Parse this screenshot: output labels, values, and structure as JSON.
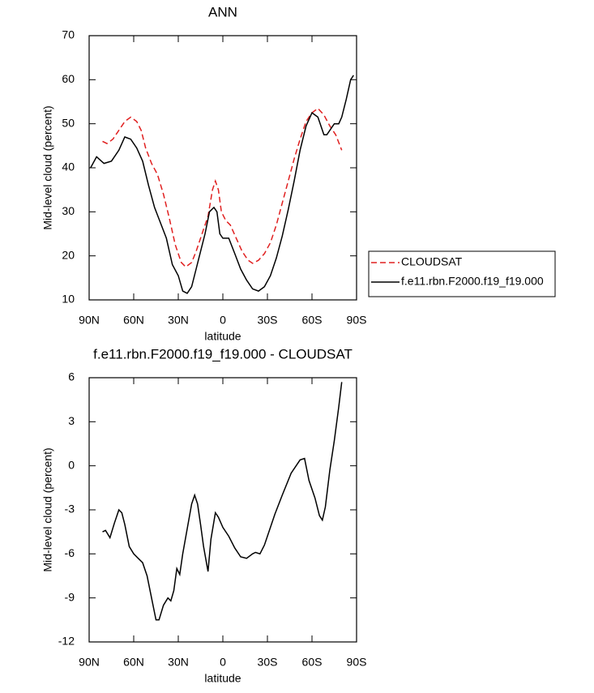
{
  "chart_data": [
    {
      "type": "line",
      "title": "ANN",
      "xlabel": "latitude",
      "ylabel": "Mid-level cloud (percent)",
      "xlim": [
        90,
        -90
      ],
      "ylim": [
        10,
        70
      ],
      "xticks": [
        {
          "value": 90,
          "label": "90N"
        },
        {
          "value": 60,
          "label": "60N"
        },
        {
          "value": 30,
          "label": "30N"
        },
        0,
        {
          "value": -30,
          "label": "30S"
        },
        {
          "value": -60,
          "label": "60S"
        },
        {
          "value": -90,
          "label": "90S"
        }
      ],
      "yticks": [
        10,
        20,
        30,
        40,
        50,
        60,
        70
      ],
      "legend_position": "right",
      "series": [
        {
          "name": "CLOUDSAT",
          "color": "#e02020",
          "linestyle": "dashed",
          "x": [
            81,
            78,
            74,
            70,
            66,
            62,
            58,
            55,
            52,
            48,
            44,
            40,
            36,
            32,
            28,
            25,
            21,
            18,
            14,
            10,
            7,
            5,
            3,
            1,
            -2,
            -5,
            -9,
            -13,
            -17,
            -20,
            -24,
            -28,
            -32,
            -36,
            -40,
            -44,
            -48,
            -52,
            -56,
            -60,
            -64,
            -68,
            -72,
            -76,
            -80
          ],
          "values": [
            46,
            45.5,
            46.5,
            48.5,
            50.5,
            51.5,
            50.5,
            48.5,
            44.5,
            41,
            38.5,
            34,
            28.5,
            22.5,
            18.5,
            17.5,
            18.5,
            21,
            25,
            29,
            35,
            37,
            35,
            30,
            28,
            27,
            24,
            21,
            19,
            18.3,
            19,
            20.5,
            23,
            27,
            32,
            37,
            42,
            46.5,
            50.5,
            52.5,
            53.5,
            52,
            49.5,
            47.5,
            44
          ]
        },
        {
          "name": "f.e11.rbn.F2000.f19_f19.000",
          "color": "#000000",
          "linestyle": "solid",
          "x": [
            89,
            85,
            80,
            75,
            70,
            66,
            62,
            58,
            54,
            50,
            46,
            42,
            38,
            34,
            30,
            27,
            24,
            21,
            18,
            15,
            12,
            9,
            6,
            4,
            2,
            0,
            -4,
            -8,
            -12,
            -16,
            -20,
            -24,
            -28,
            -32,
            -36,
            -40,
            -44,
            -48,
            -52,
            -56,
            -60,
            -64,
            -68,
            -70,
            -72,
            -75,
            -78,
            -80,
            -83,
            -86,
            -88
          ],
          "values": [
            40,
            42.5,
            41,
            41.5,
            44,
            47,
            46.5,
            44.5,
            41.5,
            36,
            31,
            27.5,
            24,
            18,
            15.5,
            12,
            11.5,
            13,
            17,
            21,
            25,
            30,
            31,
            30,
            25,
            24,
            24,
            20.5,
            17,
            14.5,
            12.5,
            12,
            13,
            15.5,
            19.5,
            24.5,
            30.5,
            37,
            44,
            49.5,
            52.5,
            51.5,
            47.5,
            47.5,
            48.5,
            50,
            50,
            51.5,
            55.5,
            60,
            61
          ]
        }
      ]
    },
    {
      "type": "line",
      "title": "f.e11.rbn.F2000.f19_f19.000 - CLOUDSAT",
      "xlabel": "latitude",
      "ylabel": "Mid-level cloud (percent)",
      "xlim": [
        90,
        -90
      ],
      "ylim": [
        -12,
        6
      ],
      "xticks": [
        {
          "value": 90,
          "label": "90N"
        },
        {
          "value": 60,
          "label": "60N"
        },
        {
          "value": 30,
          "label": "30N"
        },
        0,
        {
          "value": -30,
          "label": "30S"
        },
        {
          "value": -60,
          "label": "60S"
        },
        {
          "value": -90,
          "label": "90S"
        }
      ],
      "yticks": [
        -12,
        -9,
        -6,
        -3,
        0,
        3,
        6
      ],
      "series": [
        {
          "color": "#000000",
          "linestyle": "solid",
          "x": [
            81,
            79,
            76,
            73,
            70,
            68,
            66,
            63,
            60,
            57,
            54,
            51,
            48,
            45,
            43,
            40,
            37,
            35,
            33,
            31,
            29,
            27,
            24,
            21,
            19,
            17,
            15,
            13,
            10,
            8,
            5,
            3,
            0,
            -4,
            -8,
            -12,
            -16,
            -20,
            -22,
            -25,
            -28,
            -31,
            -35,
            -40,
            -46,
            -52,
            -55,
            -58,
            -62,
            -65,
            -67,
            -69,
            -72,
            -75,
            -78,
            -80
          ],
          "values": [
            -4.5,
            -4.4,
            -4.9,
            -3.9,
            -3,
            -3.2,
            -4,
            -5.5,
            -6,
            -6.3,
            -6.6,
            -7.5,
            -9,
            -10.5,
            -10.5,
            -9.5,
            -9,
            -9.2,
            -8.5,
            -7,
            -7.4,
            -6,
            -4.3,
            -2.6,
            -2,
            -2.6,
            -4,
            -5.5,
            -7.2,
            -5,
            -3.2,
            -3.5,
            -4.2,
            -4.8,
            -5.6,
            -6.2,
            -6.3,
            -6,
            -5.9,
            -6,
            -5.4,
            -4.5,
            -3.3,
            -2,
            -0.5,
            0.4,
            0.5,
            -1,
            -2.2,
            -3.4,
            -3.7,
            -2.8,
            -0.3,
            1.7,
            4,
            5.7
          ]
        }
      ]
    }
  ]
}
